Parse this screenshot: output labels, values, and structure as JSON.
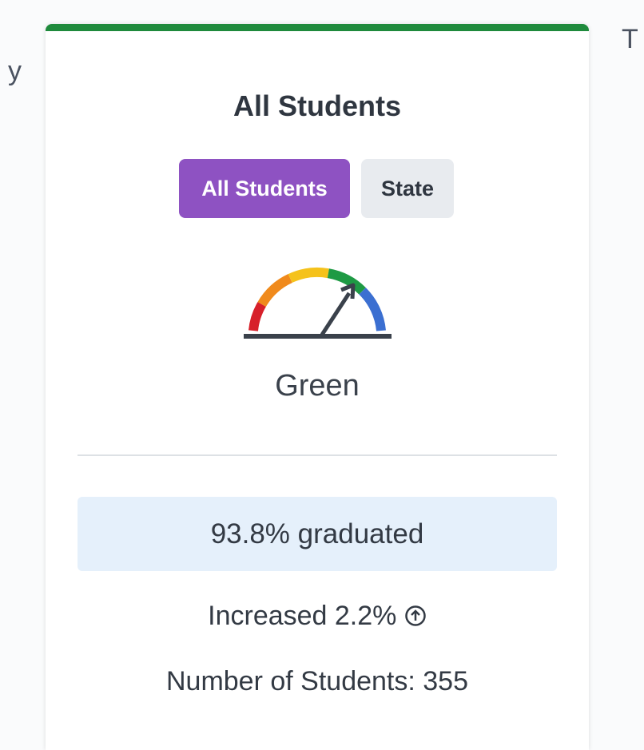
{
  "left_edge_text": "y",
  "right_edge_text": "T",
  "card": {
    "title": "All Students",
    "tabs": [
      "All Students",
      "State"
    ],
    "gauge_label": "Green",
    "rate_text": "93.8% graduated",
    "change_text": "Increased 2.2%",
    "count_text": "Number of Students: 355"
  }
}
